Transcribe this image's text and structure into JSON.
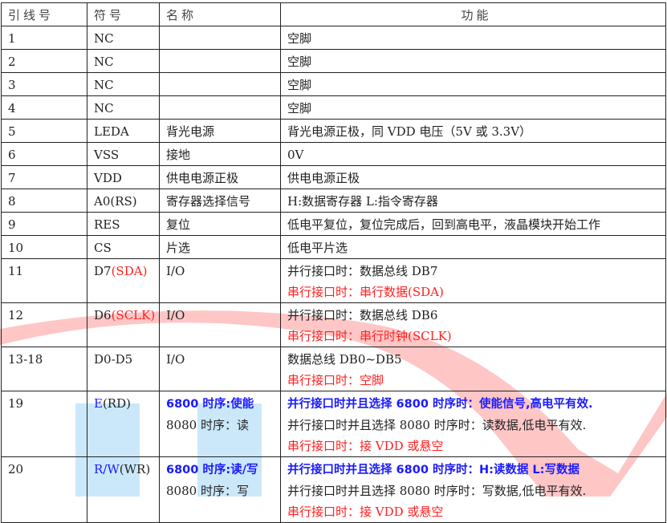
{
  "headers": [
    "引线号",
    "符号",
    "名称",
    "功能"
  ],
  "rows": [
    {
      "pin": "1",
      "symbol": [
        {
          "t": "NC"
        }
      ],
      "name": [],
      "func": [
        [
          {
            "t": "空脚"
          }
        ]
      ]
    },
    {
      "pin": "2",
      "symbol": [
        {
          "t": "NC"
        }
      ],
      "name": [],
      "func": [
        [
          {
            "t": "空脚"
          }
        ]
      ]
    },
    {
      "pin": "3",
      "symbol": [
        {
          "t": "NC"
        }
      ],
      "name": [],
      "func": [
        [
          {
            "t": "空脚"
          }
        ]
      ]
    },
    {
      "pin": "4",
      "symbol": [
        {
          "t": "NC"
        }
      ],
      "name": [],
      "func": [
        [
          {
            "t": "空脚"
          }
        ]
      ]
    },
    {
      "pin": "5",
      "symbol": [
        {
          "t": "LEDA"
        }
      ],
      "name": [
        [
          {
            "t": "背光电源"
          }
        ]
      ],
      "func": [
        [
          {
            "t": "背光电源正极，同 VDD 电压（5V 或 3.3V）"
          }
        ]
      ]
    },
    {
      "pin": "6",
      "symbol": [
        {
          "t": "VSS"
        }
      ],
      "name": [
        [
          {
            "t": "接地"
          }
        ]
      ],
      "func": [
        [
          {
            "t": "0V"
          }
        ]
      ]
    },
    {
      "pin": "7",
      "symbol": [
        {
          "t": "VDD"
        }
      ],
      "name": [
        [
          {
            "t": "供电电源正极"
          }
        ]
      ],
      "func": [
        [
          {
            "t": "供电电源正极"
          }
        ]
      ]
    },
    {
      "pin": "8",
      "symbol": [
        {
          "t": "A0(RS)"
        }
      ],
      "name": [
        [
          {
            "t": "寄存器选择信号"
          }
        ]
      ],
      "func": [
        [
          {
            "t": "H:数据寄存器 L:指令寄存器"
          }
        ]
      ]
    },
    {
      "pin": "9",
      "symbol": [
        {
          "t": "RES"
        }
      ],
      "name": [
        [
          {
            "t": "复位"
          }
        ]
      ],
      "func": [
        [
          {
            "t": "低电平复位，复位完成后，回到高电平，液晶模块开始工作"
          }
        ]
      ]
    },
    {
      "pin": "10",
      "symbol": [
        {
          "t": "CS"
        }
      ],
      "name": [
        [
          {
            "t": "片选"
          }
        ]
      ],
      "func": [
        [
          {
            "t": "低电平片选"
          }
        ]
      ]
    },
    {
      "pin": "11",
      "symbol": [
        {
          "t": "D7"
        },
        {
          "t": "(SDA)",
          "c": "red"
        }
      ],
      "name": [
        [
          {
            "t": "I/O"
          }
        ]
      ],
      "func": [
        [
          {
            "t": "并行接口时：数据总线 DB7"
          }
        ],
        [
          {
            "t": "串行接口时：串行数据(SDA)",
            "c": "red"
          }
        ]
      ]
    },
    {
      "pin": "12",
      "symbol": [
        {
          "t": "D6"
        },
        {
          "t": "(SCLK)",
          "c": "red"
        }
      ],
      "name": [
        [
          {
            "t": "I/O"
          }
        ]
      ],
      "func": [
        [
          {
            "t": "并行接口时：数据总线 DB6"
          }
        ],
        [
          {
            "t": "串行接口时：串行时钟(SCLK)",
            "c": "red"
          }
        ]
      ]
    },
    {
      "pin": "13-18",
      "symbol": [
        {
          "t": "D0-D5"
        }
      ],
      "name": [
        [
          {
            "t": "I/O"
          }
        ]
      ],
      "func": [
        [
          {
            "t": "数据总线 DB0~DB5"
          }
        ],
        [
          {
            "t": "串行接口时：空脚",
            "c": "red"
          }
        ]
      ]
    },
    {
      "pin": "19",
      "symbol": [
        {
          "t": "E",
          "c": "blue"
        },
        {
          "t": "(RD)"
        }
      ],
      "name": [
        [
          {
            "t": "6800  时序:使能",
            "c": "blue bold"
          }
        ],
        [
          {
            "t": "8080 时序：读"
          }
        ]
      ],
      "func": [
        [
          {
            "t": "并行接口时并且选择 6800 时序时：使能信号,高电平有效.",
            "c": "blue bold"
          }
        ],
        [
          {
            "t": "并行接口时并且选择 8080 时序时：读数据,低电平有效."
          }
        ],
        [
          {
            "t": "串行接口时：接 VDD 或悬空",
            "c": "red"
          }
        ]
      ]
    },
    {
      "pin": "20",
      "symbol": [
        {
          "t": "R/W",
          "c": "blue"
        },
        {
          "t": "(WR)"
        }
      ],
      "name": [
        [
          {
            "t": "6800 时序:读/写",
            "c": "blue bold"
          }
        ],
        [
          {
            "t": "8080 时序：写"
          }
        ]
      ],
      "func": [
        [
          {
            "t": "并行接口时并且选择 6800 时序时：H:读数据   L:写数据",
            "c": "blue bold"
          }
        ],
        [
          {
            "t": "并行接口时并且选择 8080 时序时：写数据,低电平有效."
          }
        ],
        [
          {
            "t": "串行接口时：接 VDD 或悬空",
            "c": "red"
          }
        ]
      ]
    }
  ],
  "colors": {
    "text": "#222222",
    "red": "#ff2020",
    "blue": "#1a1aff",
    "watermark_red": "#ff9999",
    "watermark_blue": "#a8d8f8"
  }
}
